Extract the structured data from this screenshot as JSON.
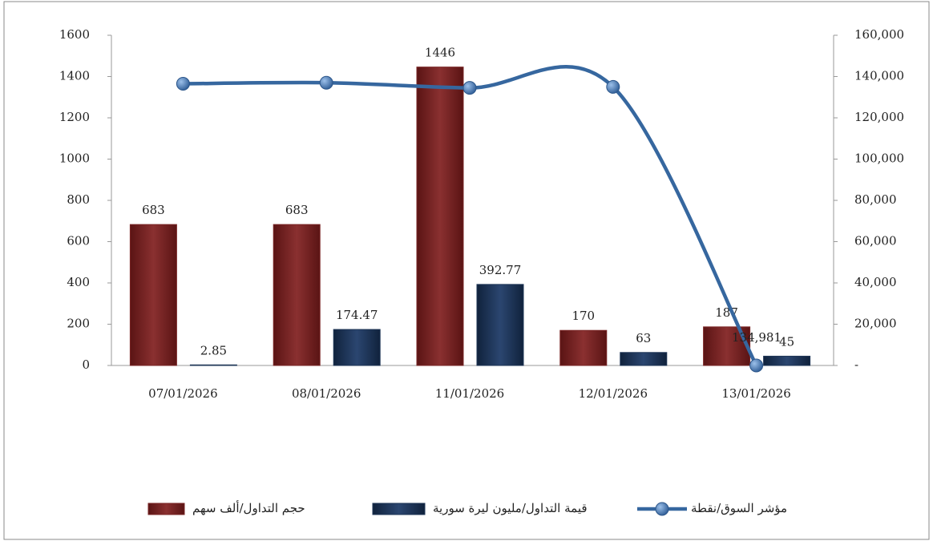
{
  "chart_data": {
    "type": "bar",
    "categories": [
      "07/01/2026",
      "08/01/2026",
      "11/01/2026",
      "12/01/2026",
      "13/01/2026"
    ],
    "ylim": [
      0,
      1600
    ],
    "yticks": [
      0,
      200,
      400,
      600,
      800,
      1000,
      1200,
      1400,
      1600
    ],
    "y2lim": [
      0,
      160000
    ],
    "y2ticks": [
      {
        "value": 0,
        "label": "-"
      },
      {
        "value": 20000,
        "label": "20,000"
      },
      {
        "value": 40000,
        "label": "40,000"
      },
      {
        "value": 60000,
        "label": "60,000"
      },
      {
        "value": 80000,
        "label": "80,000"
      },
      {
        "value": 100000,
        "label": "100,000"
      },
      {
        "value": 120000,
        "label": "120,000"
      },
      {
        "value": 140000,
        "label": "140,000"
      },
      {
        "value": 160000,
        "label": "160,000"
      }
    ],
    "legend": "bottom",
    "series": [
      {
        "name": "حجم التداول/ألف سهم",
        "type": "bar",
        "color": "#7a2626",
        "values": [
          683,
          683,
          1446,
          170,
          187
        ]
      },
      {
        "name": "قيمة التداول/مليون ليرة سورية",
        "type": "bar",
        "color": "#1e3556",
        "values": [
          2.85,
          174.47,
          392.77,
          63,
          45
        ]
      },
      {
        "name": "مؤشر السوق/نقطة",
        "type": "line",
        "axis": "y2",
        "color": "#36679f",
        "values": [
          136500,
          137000,
          134500,
          134981,
          0
        ],
        "value_labels": [
          null,
          null,
          null,
          "134,981",
          null
        ]
      }
    ]
  }
}
